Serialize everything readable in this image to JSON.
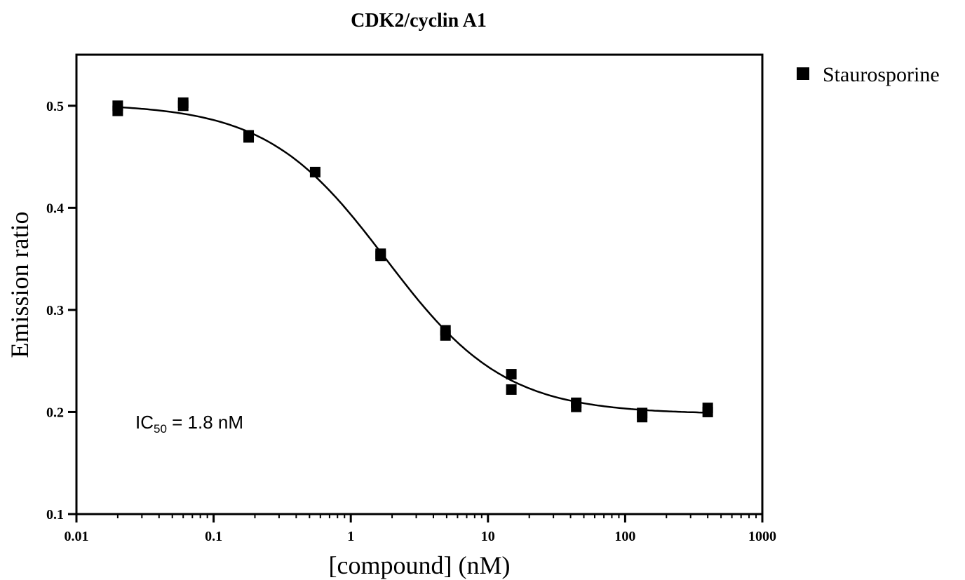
{
  "chart_data": {
    "type": "scatter",
    "title": "CDK2/cyclin A1",
    "xlabel": "[compound] (nM)",
    "ylabel": "Emission ratio",
    "x_scale": "log",
    "xlim": [
      0.01,
      1000
    ],
    "ylim": [
      0.1,
      0.55
    ],
    "x_ticks": [
      0.01,
      0.1,
      1,
      10,
      100,
      1000
    ],
    "x_tick_labels": [
      "0.01",
      "0.1",
      "1",
      "10",
      "100",
      "1000"
    ],
    "y_ticks": [
      0.1,
      0.2,
      0.3,
      0.4,
      0.5
    ],
    "y_tick_labels": [
      "0.1",
      "0.2",
      "0.3",
      "0.4",
      "0.5"
    ],
    "grid": false,
    "legend_position": "top-right",
    "series": [
      {
        "name": "Staurosporine",
        "marker": "square",
        "color": "#000000",
        "points": [
          {
            "x": 0.02,
            "y": 0.5
          },
          {
            "x": 0.02,
            "y": 0.495
          },
          {
            "x": 0.06,
            "y": 0.503
          },
          {
            "x": 0.06,
            "y": 0.5
          },
          {
            "x": 0.18,
            "y": 0.471
          },
          {
            "x": 0.18,
            "y": 0.469
          },
          {
            "x": 0.55,
            "y": 0.435
          },
          {
            "x": 1.65,
            "y": 0.355
          },
          {
            "x": 1.65,
            "y": 0.353
          },
          {
            "x": 4.9,
            "y": 0.28
          },
          {
            "x": 4.9,
            "y": 0.275
          },
          {
            "x": 14.8,
            "y": 0.237
          },
          {
            "x": 14.8,
            "y": 0.222
          },
          {
            "x": 44,
            "y": 0.209
          },
          {
            "x": 44,
            "y": 0.205
          },
          {
            "x": 133,
            "y": 0.199
          },
          {
            "x": 133,
            "y": 0.195
          },
          {
            "x": 400,
            "y": 0.204
          },
          {
            "x": 400,
            "y": 0.2
          }
        ],
        "fit": {
          "model": "sigmoidal dose-response",
          "top": 0.502,
          "bottom": 0.198,
          "ic50": 1.8,
          "hill_slope": 1.0
        }
      }
    ],
    "annotation": {
      "prefix": "IC",
      "subscript": "50",
      "value_text": " = 1.8    nM"
    }
  }
}
